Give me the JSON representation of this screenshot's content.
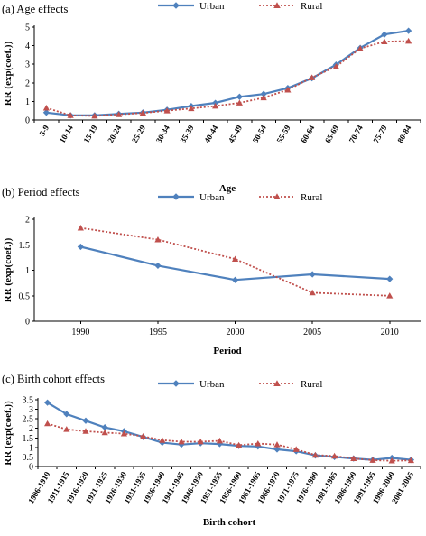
{
  "colors": {
    "urban": "#4f81bd",
    "rural": "#c0504d"
  },
  "chart_data": [
    {
      "type": "line",
      "title": "(a) Age effects",
      "xlabel": "Age",
      "ylabel": "RR (exp(coef.))",
      "ylim": [
        0,
        5
      ],
      "yticks": [
        "0",
        "1",
        "2",
        "3",
        "4",
        "5"
      ],
      "categories": [
        "5-9",
        "10-14",
        "15-19",
        "20-24",
        "25-29",
        "30-34",
        "35-39",
        "40-44",
        "45-49",
        "50-54",
        "55-59",
        "60-64",
        "65-69",
        "70-74",
        "75-79",
        "80-84"
      ],
      "series": [
        {
          "name": "Urban",
          "values": [
            0.4,
            0.25,
            0.25,
            0.33,
            0.4,
            0.55,
            0.75,
            0.92,
            1.25,
            1.4,
            1.72,
            2.25,
            2.98,
            3.88,
            4.6,
            4.8
          ]
        },
        {
          "name": "Rural",
          "values": [
            0.65,
            0.25,
            0.22,
            0.3,
            0.38,
            0.5,
            0.62,
            0.75,
            0.92,
            1.2,
            1.62,
            2.28,
            2.88,
            3.85,
            4.22,
            4.25
          ]
        }
      ],
      "legend_position": "top-center",
      "grid": false
    },
    {
      "type": "line",
      "title": "(b) Period effects",
      "xlabel": "Period",
      "ylabel": "RR (exp(coef.))",
      "ylim": [
        0,
        2
      ],
      "yticks": [
        "0",
        "0.5",
        "1",
        "1.5",
        "2"
      ],
      "xlim": [
        1987,
        2012
      ],
      "x": [
        1990,
        1995,
        2000,
        2005,
        2010
      ],
      "xticks": [
        "1990",
        "1995",
        "2000",
        "2005",
        "2010"
      ],
      "series": [
        {
          "name": "Urban",
          "values": [
            1.46,
            1.09,
            0.81,
            0.92,
            0.83
          ]
        },
        {
          "name": "Rural",
          "values": [
            1.83,
            1.6,
            1.22,
            0.56,
            0.5
          ]
        }
      ],
      "legend_position": "top-center",
      "grid": false
    },
    {
      "type": "line",
      "title": "(c) Birth cohort effects",
      "xlabel": "Birth cohort",
      "ylabel": "RR (exp(coef.))",
      "ylim": [
        0,
        3.5
      ],
      "yticks": [
        "0",
        "0.5",
        "1",
        "1.5",
        "2",
        "2.5",
        "3",
        "3.5"
      ],
      "categories": [
        "1906-1910",
        "1911-1915",
        "1916-1920",
        "1921-1925",
        "1926-1930",
        "1931-1935",
        "1936-1940",
        "1941-1945",
        "1946-1950",
        "1951-1955",
        "1956-1960",
        "1961-1965",
        "1966-1970",
        "1971-1975",
        "1976-1980",
        "1981-1985",
        "1986-1990",
        "1991-1995",
        "1996-2000",
        "2001-2005"
      ],
      "series": [
        {
          "name": "Urban",
          "values": [
            3.35,
            2.75,
            2.4,
            2.05,
            1.85,
            1.55,
            1.25,
            1.15,
            1.22,
            1.18,
            1.08,
            1.05,
            0.9,
            0.8,
            0.58,
            0.5,
            0.42,
            0.35,
            0.45,
            0.35
          ]
        },
        {
          "name": "Rural",
          "values": [
            2.25,
            1.95,
            1.85,
            1.78,
            1.72,
            1.58,
            1.38,
            1.3,
            1.3,
            1.35,
            1.12,
            1.2,
            1.15,
            0.9,
            0.6,
            0.55,
            0.42,
            0.33,
            0.3,
            0.32
          ]
        }
      ],
      "legend_position": "top-center",
      "grid": false
    }
  ]
}
